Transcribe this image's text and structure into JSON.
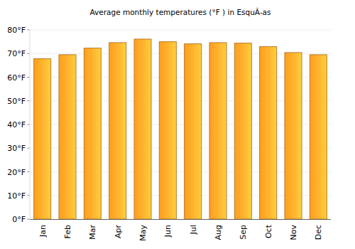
{
  "chart_data": {
    "type": "bar",
    "title": "Average monthly temperatures (°F ) in EsquÃ-as",
    "categories": [
      "Jan",
      "Feb",
      "Mar",
      "Apr",
      "May",
      "Jun",
      "Jul",
      "Aug",
      "Sep",
      "Oct",
      "Nov",
      "Dec"
    ],
    "values": [
      67.8,
      69.5,
      72.3,
      74.6,
      76.1,
      75.0,
      74.1,
      74.6,
      74.4,
      72.9,
      70.4,
      69.5
    ],
    "color": "#ffb22e",
    "ylim": [
      0,
      80
    ],
    "yticks": [
      {
        "value": 0,
        "label": "0°F"
      },
      {
        "value": 10,
        "label": "10°F"
      },
      {
        "value": 20,
        "label": "20°F"
      },
      {
        "value": 30,
        "label": "30°F"
      },
      {
        "value": 40,
        "label": "40°F"
      },
      {
        "value": 50,
        "label": "50°F"
      },
      {
        "value": 60,
        "label": "60°F"
      },
      {
        "value": 70,
        "label": "70°F"
      },
      {
        "value": 80,
        "label": "80°F"
      }
    ],
    "grid": true
  }
}
